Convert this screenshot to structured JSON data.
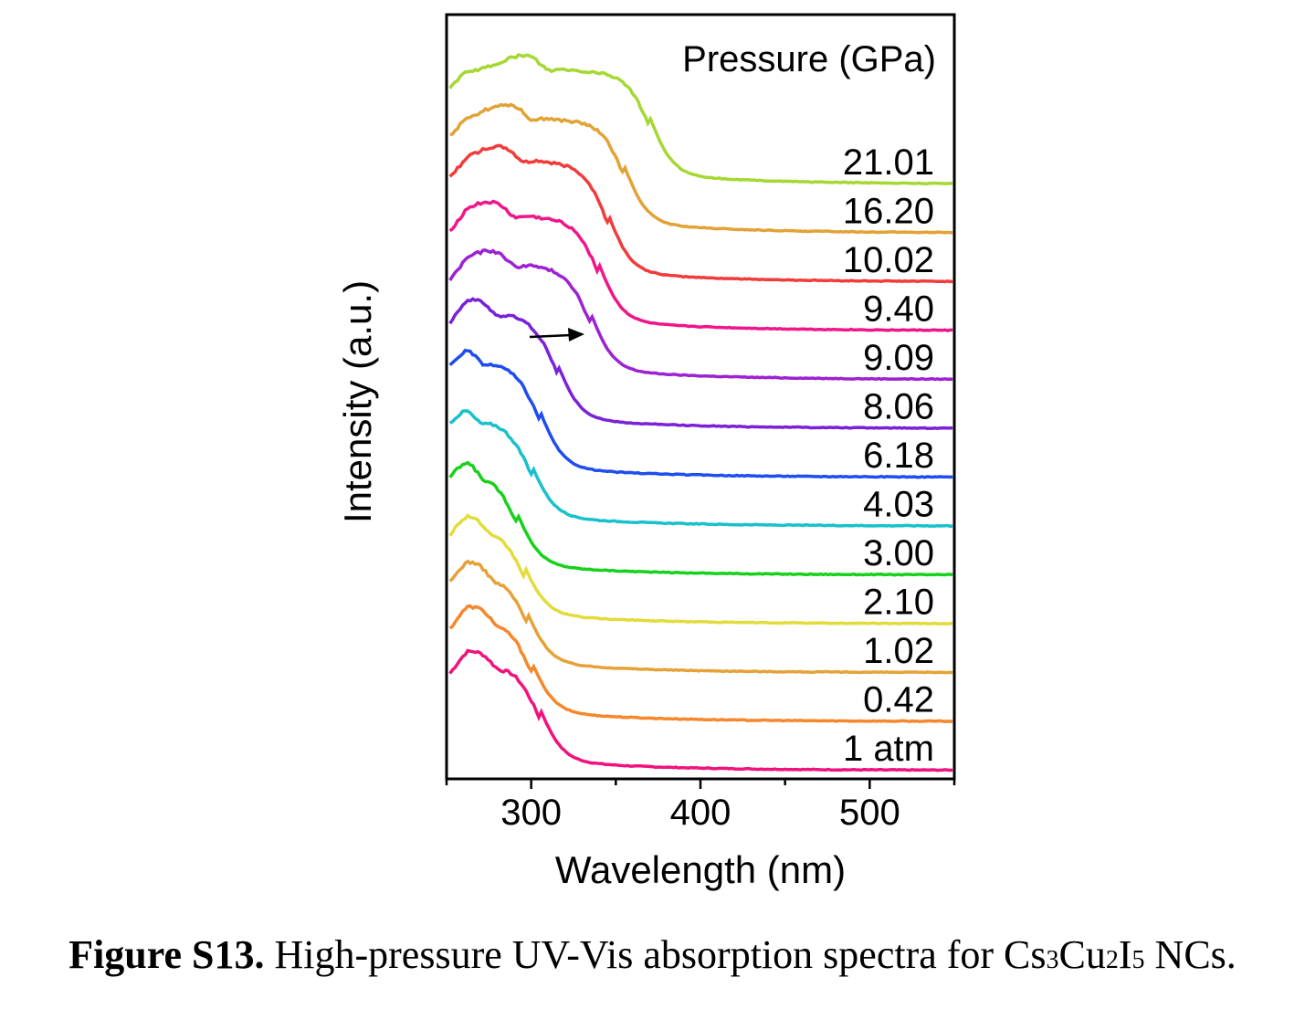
{
  "caption": {
    "label": "Figure S13.",
    "text_before": "High-pressure UV-Vis absorption spectra for Cs",
    "sub1": "3",
    "text_cu": "Cu",
    "sub2": "2",
    "text_i": "I",
    "sub3": "5",
    "text_after": " NCs."
  },
  "chart_data": {
    "type": "line",
    "title": "",
    "xlabel": "Wavelength (nm)",
    "ylabel": "Intensity (a.u.)",
    "xlim": [
      250,
      550
    ],
    "xticks": [
      300,
      400,
      500
    ],
    "yticks_visible": false,
    "legend_title": "Pressure (GPa)",
    "legend_placement": "right, labels placed at end of each curve",
    "stacked_offset": true,
    "annotation": "arrow pointing toward longer wavelength (absorption edge red-shift)",
    "series": [
      {
        "name": "1 atm",
        "color": "#f0137d",
        "edge_nm": 305,
        "plateau": 0.78,
        "shoulder": 280
      },
      {
        "name": "0.42",
        "color": "#f6872c",
        "edge_nm": 300,
        "plateau": 0.75,
        "shoulder": 280
      },
      {
        "name": "1.02",
        "color": "#e6a239",
        "edge_nm": 298,
        "plateau": 0.72,
        "shoulder": 278
      },
      {
        "name": "2.10",
        "color": "#e2dc3b",
        "edge_nm": 296,
        "plateau": 0.7,
        "shoulder": 276
      },
      {
        "name": "3.00",
        "color": "#17d11a",
        "edge_nm": 292,
        "plateau": 0.75,
        "shoulder": 272
      },
      {
        "name": "4.03",
        "color": "#18c1cb",
        "edge_nm": 300,
        "plateau": 0.78,
        "shoulder": 270
      },
      {
        "name": "6.18",
        "color": "#1f4df0",
        "edge_nm": 305,
        "plateau": 0.85,
        "shoulder": 272
      },
      {
        "name": "8.06",
        "color": "#7b22d8",
        "edge_nm": 315,
        "plateau": 0.85,
        "shoulder": 280
      },
      {
        "name": "9.09",
        "color": "#9c22d2",
        "edge_nm": 335,
        "plateau": 0.85,
        "shoulder": 290
      },
      {
        "name": "9.40",
        "color": "#f0168a",
        "edge_nm": 340,
        "plateau": 0.85,
        "shoulder": 290
      },
      {
        "name": "10.02",
        "color": "#f23b3b",
        "edge_nm": 345,
        "plateau": 0.9,
        "shoulder": 295
      },
      {
        "name": "16.20",
        "color": "#e2a235",
        "edge_nm": 355,
        "plateau": 0.85,
        "shoulder": 300
      },
      {
        "name": "21.01",
        "color": "#a5d832",
        "edge_nm": 370,
        "plateau": 0.85,
        "shoulder": 310
      }
    ]
  }
}
